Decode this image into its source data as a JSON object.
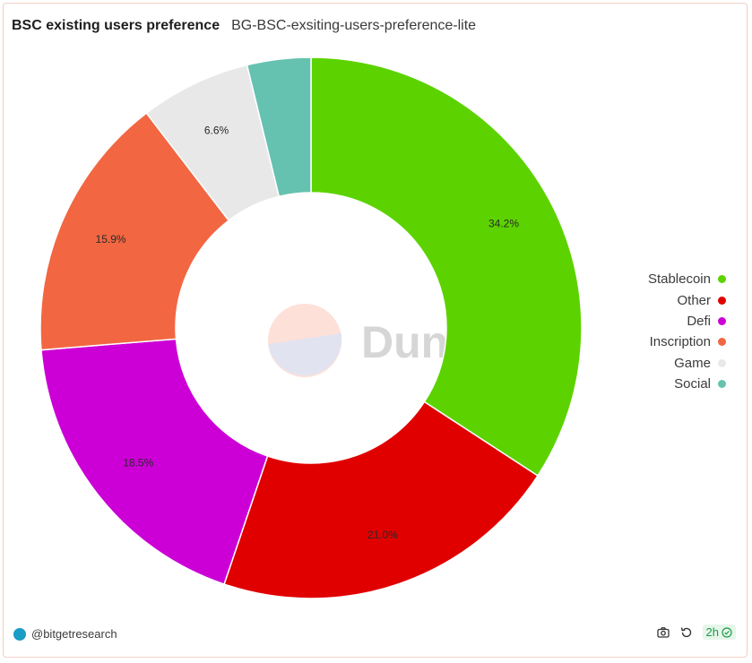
{
  "header": {
    "title": "BSC existing users preference",
    "subtitle": "BG-BSC-exsiting-users-preference-lite"
  },
  "watermark": "Dune",
  "chart_data": {
    "type": "pie",
    "donut": true,
    "title": "BSC existing users preference",
    "legend_position": "right",
    "slices": [
      {
        "label": "Stablecoin",
        "value": 34.2,
        "display": "34.2%",
        "color": "#5cd300",
        "show_label": true
      },
      {
        "label": "Other",
        "value": 21.0,
        "display": "21.0%",
        "color": "#e00000",
        "show_label": true
      },
      {
        "label": "Defi",
        "value": 18.5,
        "display": "18.5%",
        "color": "#cc00d6",
        "show_label": true
      },
      {
        "label": "Inscription",
        "value": 15.9,
        "display": "15.9%",
        "color": "#f26641",
        "show_label": true
      },
      {
        "label": "Game",
        "value": 6.6,
        "display": "6.6%",
        "color": "#e8e8e8",
        "show_label": true
      },
      {
        "label": "Social",
        "value": 3.8,
        "display": "",
        "color": "#66c2b0",
        "show_label": false
      }
    ]
  },
  "footer": {
    "author": "@bitgetresearch",
    "refresh_badge": "2h"
  },
  "icons": {
    "camera": "camera-icon",
    "refresh": "refresh-icon",
    "check": "check-circle-icon"
  }
}
